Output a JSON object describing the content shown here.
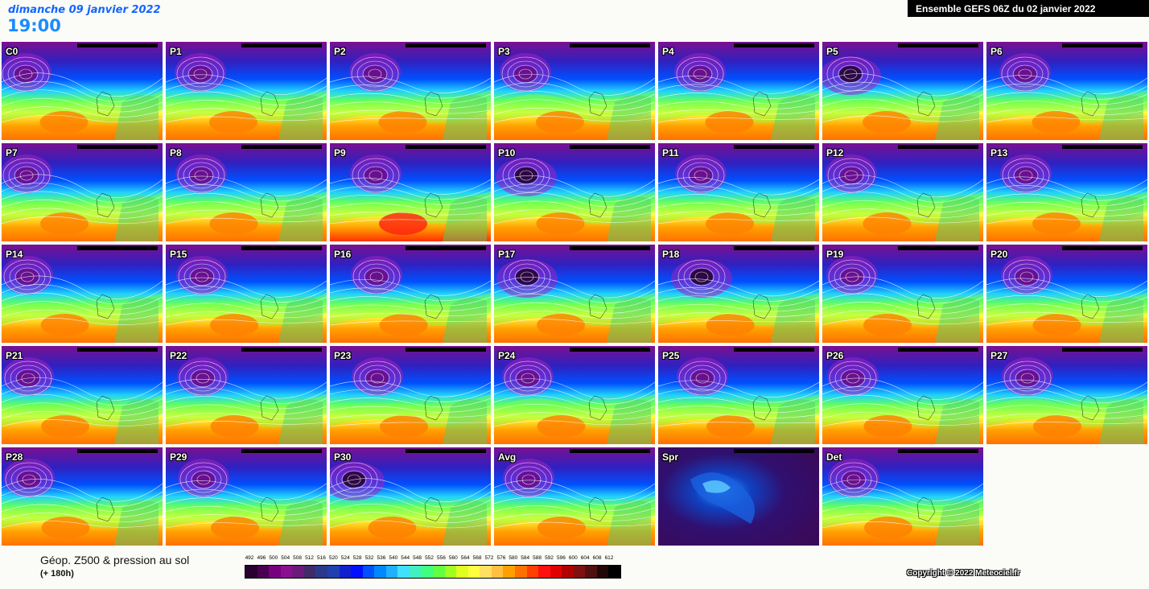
{
  "header": {
    "date": "dimanche 09 janvier 2022",
    "time": "19:00",
    "run": "Ensemble GEFS 06Z du 02 janvier 2022"
  },
  "tiles": [
    {
      "label": "C0",
      "kind": "trough-west"
    },
    {
      "label": "P1",
      "kind": "zonal"
    },
    {
      "label": "P2",
      "kind": "zonal"
    },
    {
      "label": "P3",
      "kind": "split"
    },
    {
      "label": "P4",
      "kind": "zonal"
    },
    {
      "label": "P5",
      "kind": "deep-west"
    },
    {
      "label": "P6",
      "kind": "zonal"
    },
    {
      "label": "P7",
      "kind": "trough-west"
    },
    {
      "label": "P8",
      "kind": "zonal"
    },
    {
      "label": "P9",
      "kind": "hot"
    },
    {
      "label": "P10",
      "kind": "deep-west"
    },
    {
      "label": "P11",
      "kind": "trough-west"
    },
    {
      "label": "P12",
      "kind": "zonal"
    },
    {
      "label": "P13",
      "kind": "zonal"
    },
    {
      "label": "P14",
      "kind": "zonal"
    },
    {
      "label": "P15",
      "kind": "trough-west"
    },
    {
      "label": "P16",
      "kind": "zonal"
    },
    {
      "label": "P17",
      "kind": "deep-west"
    },
    {
      "label": "P18",
      "kind": "deep-west"
    },
    {
      "label": "P19",
      "kind": "zonal"
    },
    {
      "label": "P20",
      "kind": "zonal"
    },
    {
      "label": "P21",
      "kind": "trough-west"
    },
    {
      "label": "P22",
      "kind": "zonal"
    },
    {
      "label": "P23",
      "kind": "zonal"
    },
    {
      "label": "P24",
      "kind": "split"
    },
    {
      "label": "P25",
      "kind": "zonal"
    },
    {
      "label": "P26",
      "kind": "trough-west"
    },
    {
      "label": "P27",
      "kind": "split"
    },
    {
      "label": "P28",
      "kind": "zonal"
    },
    {
      "label": "P29",
      "kind": "zonal"
    },
    {
      "label": "P30",
      "kind": "deep-west"
    },
    {
      "label": "Avg",
      "kind": "zonal"
    },
    {
      "label": "Spr",
      "kind": "spread"
    },
    {
      "label": "Det",
      "kind": "trough-west"
    }
  ],
  "footer": {
    "title": "Géop. Z500 & pression au sol",
    "lead": "(+ 180h)",
    "copyright": "Copyright © 2022 Meteociel.fr"
  },
  "scale": {
    "labels": [
      "492",
      "496",
      "500",
      "504",
      "508",
      "512",
      "516",
      "520",
      "524",
      "528",
      "532",
      "536",
      "540",
      "544",
      "548",
      "552",
      "556",
      "560",
      "564",
      "568",
      "572",
      "576",
      "580",
      "584",
      "588",
      "592",
      "596",
      "600",
      "604",
      "608",
      "612"
    ],
    "colors": [
      "#2a0030",
      "#4a0050",
      "#760080",
      "#8a1090",
      "#6a1a7a",
      "#402a6a",
      "#2a3a8a",
      "#2040b0",
      "#1020d0",
      "#0010ff",
      "#0050ff",
      "#0088ff",
      "#20b0ff",
      "#40e0ff",
      "#40f0c0",
      "#40ff80",
      "#60ff40",
      "#a0ff20",
      "#e0ff20",
      "#ffff40",
      "#ffe060",
      "#ffc040",
      "#ffa000",
      "#ff7000",
      "#ff4000",
      "#ff1010",
      "#e00000",
      "#b00000",
      "#801010",
      "#501010",
      "#200808",
      "#000000"
    ]
  }
}
